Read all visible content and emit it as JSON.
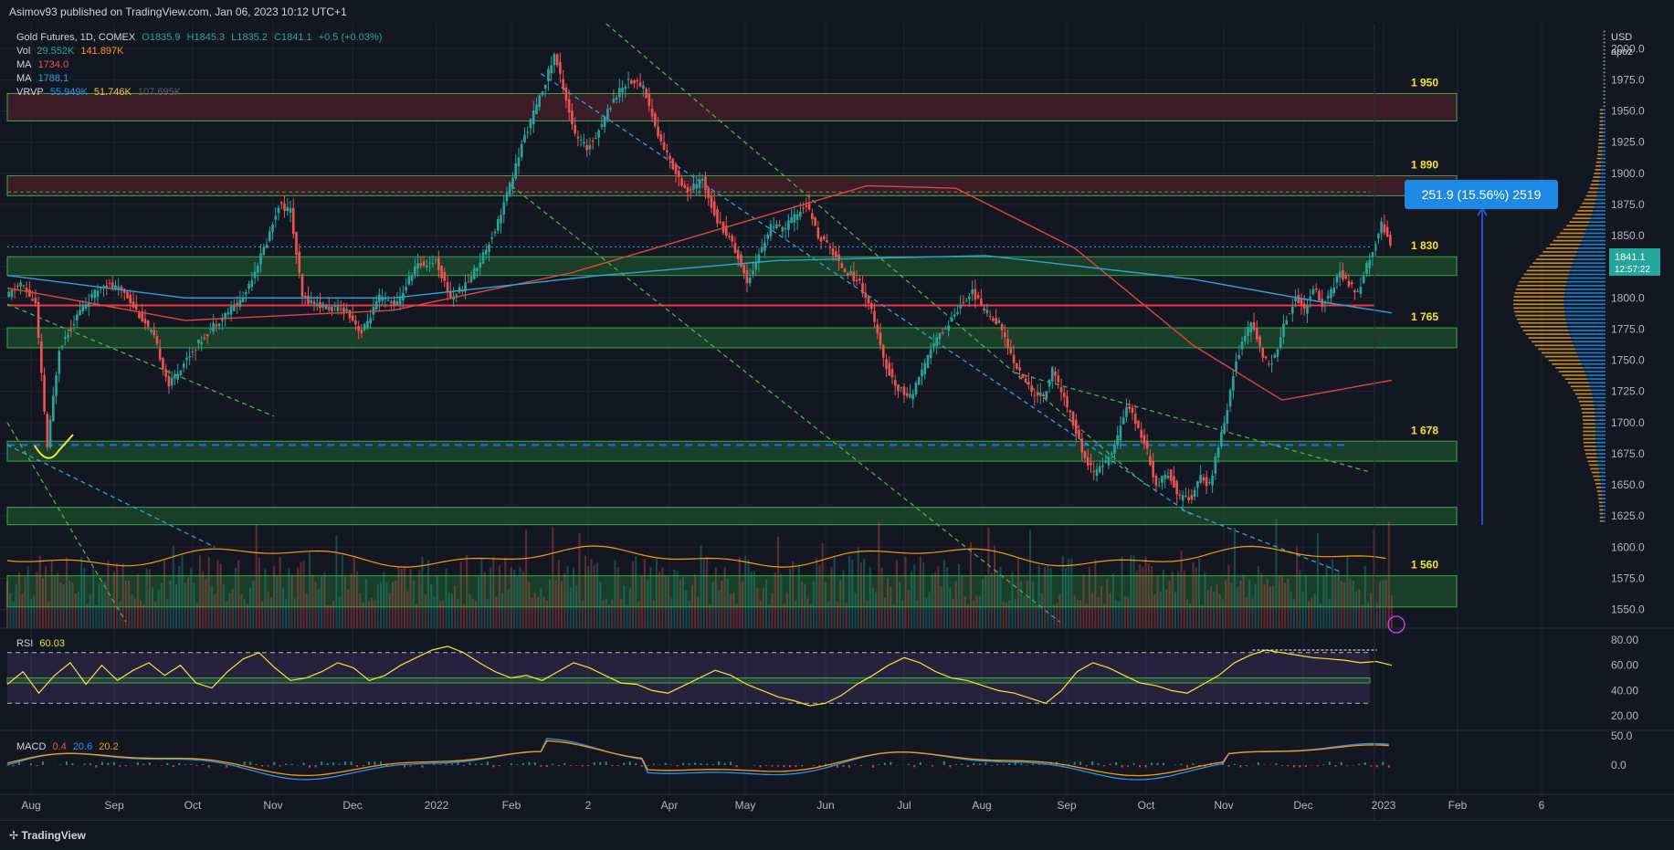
{
  "header": {
    "title": "Asimov93 published on TradingView.com, Jan 06, 2023 10:12 UTC+1"
  },
  "footer": {
    "brand": "TradingView"
  },
  "legend": {
    "symbol": "Gold Futures, 1D, COMEX",
    "open": "O1835.9",
    "high": "H1845.3",
    "low": "L1835.2",
    "close": "C1841.1",
    "change": "+0.5 (+0.03%)",
    "vol_label": "Vol",
    "vol1": "29.552K",
    "vol2": "141.897K",
    "ma1_label": "MA",
    "ma1": "1734.0",
    "ma2_label": "MA",
    "ma2": "1788.1",
    "vrvp_label": "VRVP",
    "vrvp1": "55.949K",
    "vrvp2": "51.746K",
    "vrvp3": "107.695K"
  },
  "rsi": {
    "label": "RSI",
    "value": "60.03"
  },
  "macd": {
    "label": "MACD",
    "v1": "0.4",
    "v2": "20.6",
    "v3": "20.2"
  },
  "price_axis": {
    "currency": "USD",
    "sub": "apoz",
    "last_price": "1841.1",
    "countdown": "12:57:22"
  },
  "measure_box": "251.9 (15.56%) 2519",
  "colors": {
    "background": "#131722",
    "up": "#26a69a",
    "down": "#ef5350",
    "ma_red": "#e0453f",
    "ma_blue": "#2ba4d8",
    "zone_green": "#1e4d2b",
    "zone_red": "#4a1f2a",
    "label_yellow": "#f5e52c",
    "rsi_line": "#f5e52c",
    "macd_blue": "#2196f3",
    "macd_orange": "#ff9800",
    "measure": "#2962ff"
  },
  "chart_data": {
    "type": "candlestick",
    "title": "Gold Futures, 1D, COMEX",
    "x_ticks": [
      "Aug",
      "Sep",
      "Oct",
      "Nov",
      "Dec",
      "2022",
      "Feb",
      "2",
      "Apr",
      "May",
      "Jun",
      "Jul",
      "Aug",
      "Sep",
      "Oct",
      "Nov",
      "Dec",
      "2023",
      "Feb",
      "6"
    ],
    "y_ticks": [
      "2000.0",
      "1975.0",
      "1950.0",
      "1925.0",
      "1900.0",
      "1875.0",
      "1850.0",
      "1825.0",
      "1800.0",
      "1775.0",
      "1750.0",
      "1725.0",
      "1700.0",
      "1675.0",
      "1650.0",
      "1625.0",
      "1600.0",
      "1575.0",
      "1550.0"
    ],
    "ylim": [
      1535,
      2020
    ],
    "levels": [
      {
        "label": "1 950",
        "kind": "resistance",
        "range": [
          1942,
          1964
        ]
      },
      {
        "label": "1 890",
        "kind": "resistance",
        "range": [
          1882,
          1898
        ]
      },
      {
        "label": "1 830",
        "kind": "support",
        "range": [
          1818,
          1833
        ]
      },
      {
        "label": "1 765",
        "kind": "support",
        "range": [
          1760,
          1776
        ]
      },
      {
        "label": "1 678",
        "kind": "support",
        "range": [
          1669,
          1685
        ]
      },
      {
        "label": "",
        "kind": "support",
        "range": [
          1618,
          1632
        ]
      },
      {
        "label": "1 560",
        "kind": "support",
        "range": [
          1552,
          1577
        ]
      }
    ],
    "key_line": 1794,
    "price_path": [
      [
        0,
        1800
      ],
      [
        5,
        1812
      ],
      [
        10,
        1795
      ],
      [
        14,
        1680
      ],
      [
        18,
        1760
      ],
      [
        25,
        1790
      ],
      [
        33,
        1812
      ],
      [
        40,
        1805
      ],
      [
        50,
        1768
      ],
      [
        55,
        1730
      ],
      [
        62,
        1755
      ],
      [
        70,
        1778
      ],
      [
        80,
        1800
      ],
      [
        88,
        1845
      ],
      [
        92,
        1875
      ],
      [
        96,
        1870
      ],
      [
        100,
        1800
      ],
      [
        108,
        1792
      ],
      [
        115,
        1790
      ],
      [
        120,
        1772
      ],
      [
        126,
        1800
      ],
      [
        132,
        1795
      ],
      [
        138,
        1825
      ],
      [
        145,
        1830
      ],
      [
        150,
        1800
      ],
      [
        155,
        1810
      ],
      [
        160,
        1830
      ],
      [
        165,
        1855
      ],
      [
        170,
        1890
      ],
      [
        175,
        1930
      ],
      [
        180,
        1960
      ],
      [
        185,
        1995
      ],
      [
        188,
        1970
      ],
      [
        192,
        1930
      ],
      [
        196,
        1920
      ],
      [
        200,
        1935
      ],
      [
        205,
        1960
      ],
      [
        210,
        1975
      ],
      [
        215,
        1970
      ],
      [
        220,
        1930
      ],
      [
        225,
        1905
      ],
      [
        230,
        1885
      ],
      [
        235,
        1895
      ],
      [
        240,
        1862
      ],
      [
        245,
        1845
      ],
      [
        250,
        1813
      ],
      [
        255,
        1840
      ],
      [
        258,
        1858
      ],
      [
        262,
        1855
      ],
      [
        266,
        1865
      ],
      [
        270,
        1875
      ],
      [
        274,
        1850
      ],
      [
        278,
        1840
      ],
      [
        282,
        1825
      ],
      [
        288,
        1812
      ],
      [
        292,
        1790
      ],
      [
        296,
        1750
      ],
      [
        300,
        1730
      ],
      [
        305,
        1720
      ],
      [
        310,
        1745
      ],
      [
        312,
        1760
      ],
      [
        318,
        1780
      ],
      [
        322,
        1795
      ],
      [
        326,
        1805
      ],
      [
        330,
        1790
      ],
      [
        335,
        1780
      ],
      [
        338,
        1760
      ],
      [
        342,
        1740
      ],
      [
        346,
        1725
      ],
      [
        350,
        1720
      ],
      [
        353,
        1742
      ],
      [
        356,
        1725
      ],
      [
        360,
        1700
      ],
      [
        364,
        1670
      ],
      [
        367,
        1660
      ],
      [
        370,
        1665
      ],
      [
        374,
        1680
      ],
      [
        378,
        1715
      ],
      [
        381,
        1700
      ],
      [
        384,
        1685
      ],
      [
        388,
        1650
      ],
      [
        392,
        1660
      ],
      [
        396,
        1640
      ],
      [
        400,
        1640
      ],
      [
        403,
        1655
      ],
      [
        406,
        1650
      ],
      [
        409,
        1680
      ],
      [
        412,
        1710
      ],
      [
        414,
        1740
      ],
      [
        417,
        1765
      ],
      [
        420,
        1780
      ],
      [
        423,
        1760
      ],
      [
        426,
        1745
      ],
      [
        429,
        1760
      ],
      [
        432,
        1785
      ],
      [
        435,
        1800
      ],
      [
        438,
        1790
      ],
      [
        441,
        1810
      ],
      [
        444,
        1795
      ],
      [
        447,
        1805
      ],
      [
        450,
        1820
      ],
      [
        453,
        1810
      ],
      [
        456,
        1805
      ],
      [
        459,
        1825
      ],
      [
        462,
        1845
      ],
      [
        464,
        1862
      ],
      [
        467,
        1842
      ]
    ],
    "ma_red_path": [
      [
        0,
        1808
      ],
      [
        60,
        1782
      ],
      [
        130,
        1790
      ],
      [
        190,
        1820
      ],
      [
        230,
        1848
      ],
      [
        290,
        1890
      ],
      [
        320,
        1888
      ],
      [
        360,
        1840
      ],
      [
        400,
        1762
      ],
      [
        430,
        1718
      ],
      [
        467,
        1734
      ]
    ],
    "ma_blue_path": [
      [
        0,
        1818
      ],
      [
        60,
        1800
      ],
      [
        130,
        1800
      ],
      [
        200,
        1818
      ],
      [
        260,
        1830
      ],
      [
        330,
        1834
      ],
      [
        400,
        1815
      ],
      [
        440,
        1798
      ],
      [
        467,
        1788
      ]
    ],
    "rsi_series": [
      45,
      55,
      38,
      52,
      62,
      45,
      60,
      48,
      56,
      62,
      52,
      60,
      46,
      42,
      55,
      65,
      70,
      58,
      48,
      50,
      55,
      62,
      58,
      48,
      52,
      60,
      66,
      72,
      75,
      70,
      62,
      55,
      50,
      52,
      48,
      55,
      62,
      58,
      52,
      46,
      45,
      40,
      38,
      44,
      50,
      56,
      52,
      45,
      40,
      35,
      32,
      28,
      30,
      36,
      45,
      52,
      60,
      66,
      62,
      55,
      50,
      48,
      44,
      40,
      38,
      34,
      30,
      40,
      55,
      62,
      58,
      52,
      46,
      44,
      40,
      38,
      45,
      52,
      62,
      68,
      72,
      70,
      68,
      66,
      65,
      64,
      62,
      63,
      60
    ]
  }
}
